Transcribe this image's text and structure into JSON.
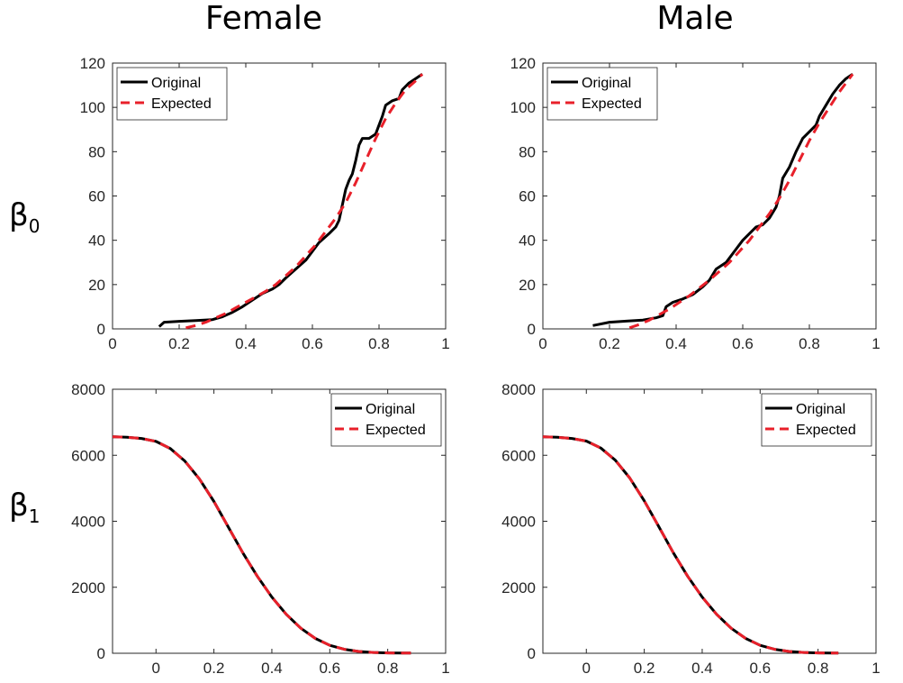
{
  "figure": {
    "col_titles": [
      "Female",
      "Male"
    ],
    "row_labels": [
      {
        "symbol": "β",
        "subscript": "0"
      },
      {
        "symbol": "β",
        "subscript": "1"
      }
    ]
  },
  "chart_data": [
    {
      "type": "line",
      "column": "Female",
      "row": "β0",
      "xlim": [
        0,
        1
      ],
      "ylim": [
        0,
        120
      ],
      "xticks": [
        0,
        0.2,
        0.4,
        0.6,
        0.8,
        1
      ],
      "xtick_labels": [
        "0",
        "0.2",
        "0.4",
        "0.6",
        "0.8",
        "1"
      ],
      "yticks": [
        0,
        20,
        40,
        60,
        80,
        100,
        120
      ],
      "ytick_labels": [
        "0",
        "20",
        "40",
        "60",
        "80",
        "100",
        "120"
      ],
      "legend_position": "top-left",
      "grid": false,
      "series": [
        {
          "name": "Original",
          "color": "#000000",
          "dash": "solid",
          "points": [
            [
              0.14,
              1
            ],
            [
              0.155,
              3
            ],
            [
              0.2,
              3.4
            ],
            [
              0.25,
              3.8
            ],
            [
              0.3,
              4.2
            ],
            [
              0.33,
              5.5
            ],
            [
              0.36,
              7.5
            ],
            [
              0.39,
              10
            ],
            [
              0.42,
              13
            ],
            [
              0.45,
              16
            ],
            [
              0.48,
              18
            ],
            [
              0.5,
              20
            ],
            [
              0.52,
              23
            ],
            [
              0.55,
              27
            ],
            [
              0.58,
              31
            ],
            [
              0.6,
              35
            ],
            [
              0.62,
              39
            ],
            [
              0.65,
              43
            ],
            [
              0.67,
              46
            ],
            [
              0.68,
              49
            ],
            [
              0.69,
              56
            ],
            [
              0.7,
              63
            ],
            [
              0.71,
              67
            ],
            [
              0.72,
              70
            ],
            [
              0.73,
              76
            ],
            [
              0.74,
              83
            ],
            [
              0.75,
              86
            ],
            [
              0.77,
              86
            ],
            [
              0.79,
              88
            ],
            [
              0.8,
              92
            ],
            [
              0.81,
              96
            ],
            [
              0.82,
              101
            ],
            [
              0.84,
              103
            ],
            [
              0.86,
              104
            ],
            [
              0.87,
              108
            ],
            [
              0.89,
              111
            ],
            [
              0.91,
              113
            ],
            [
              0.93,
              115
            ]
          ]
        },
        {
          "name": "Expected",
          "color": "#e8202a",
          "dash": "dashed",
          "points": [
            [
              0.22,
              0.5
            ],
            [
              0.25,
              1.5
            ],
            [
              0.28,
              3
            ],
            [
              0.31,
              5
            ],
            [
              0.34,
              7
            ],
            [
              0.37,
              9.5
            ],
            [
              0.4,
              12
            ],
            [
              0.43,
              14.5
            ],
            [
              0.46,
              17
            ],
            [
              0.49,
              20
            ],
            [
              0.52,
              24
            ],
            [
              0.55,
              28
            ],
            [
              0.58,
              33
            ],
            [
              0.61,
              38
            ],
            [
              0.64,
              44
            ],
            [
              0.67,
              50
            ],
            [
              0.7,
              57
            ],
            [
              0.73,
              66
            ],
            [
              0.76,
              76
            ],
            [
              0.79,
              86
            ],
            [
              0.82,
              95
            ],
            [
              0.85,
              102
            ],
            [
              0.88,
              108
            ],
            [
              0.91,
              112
            ],
            [
              0.93,
              115
            ]
          ]
        }
      ]
    },
    {
      "type": "line",
      "column": "Male",
      "row": "β0",
      "xlim": [
        0,
        1
      ],
      "ylim": [
        0,
        120
      ],
      "xticks": [
        0,
        0.2,
        0.4,
        0.6,
        0.8,
        1
      ],
      "xtick_labels": [
        "0",
        "0.2",
        "0.4",
        "0.6",
        "0.8",
        "1"
      ],
      "yticks": [
        0,
        20,
        40,
        60,
        80,
        100,
        120
      ],
      "ytick_labels": [
        "0",
        "20",
        "40",
        "60",
        "80",
        "100",
        "120"
      ],
      "legend_position": "top-left",
      "grid": false,
      "series": [
        {
          "name": "Original",
          "color": "#000000",
          "dash": "solid",
          "points": [
            [
              0.15,
              1.5
            ],
            [
              0.2,
              3
            ],
            [
              0.25,
              3.5
            ],
            [
              0.3,
              4
            ],
            [
              0.34,
              5
            ],
            [
              0.36,
              6
            ],
            [
              0.37,
              10
            ],
            [
              0.39,
              12
            ],
            [
              0.42,
              13.5
            ],
            [
              0.45,
              15.5
            ],
            [
              0.48,
              19
            ],
            [
              0.5,
              22
            ],
            [
              0.52,
              27
            ],
            [
              0.55,
              30
            ],
            [
              0.58,
              36
            ],
            [
              0.6,
              40
            ],
            [
              0.62,
              43
            ],
            [
              0.64,
              46
            ],
            [
              0.66,
              47
            ],
            [
              0.68,
              50
            ],
            [
              0.7,
              55
            ],
            [
              0.71,
              60
            ],
            [
              0.72,
              68
            ],
            [
              0.74,
              73
            ],
            [
              0.76,
              80
            ],
            [
              0.78,
              86
            ],
            [
              0.8,
              89
            ],
            [
              0.82,
              92
            ],
            [
              0.83,
              96
            ],
            [
              0.85,
              101
            ],
            [
              0.87,
              106
            ],
            [
              0.89,
              110
            ],
            [
              0.91,
              113
            ],
            [
              0.93,
              115
            ]
          ]
        },
        {
          "name": "Expected",
          "color": "#e8202a",
          "dash": "dashed",
          "points": [
            [
              0.26,
              0.5
            ],
            [
              0.29,
              2
            ],
            [
              0.32,
              4
            ],
            [
              0.35,
              6.5
            ],
            [
              0.38,
              9
            ],
            [
              0.41,
              12
            ],
            [
              0.44,
              15
            ],
            [
              0.47,
              18.5
            ],
            [
              0.5,
              22
            ],
            [
              0.53,
              26
            ],
            [
              0.56,
              30
            ],
            [
              0.59,
              35
            ],
            [
              0.62,
              40
            ],
            [
              0.65,
              46
            ],
            [
              0.68,
              52
            ],
            [
              0.71,
              59
            ],
            [
              0.74,
              67
            ],
            [
              0.77,
              76
            ],
            [
              0.8,
              85
            ],
            [
              0.83,
              93
            ],
            [
              0.86,
              100
            ],
            [
              0.89,
              107
            ],
            [
              0.91,
              111
            ],
            [
              0.93,
              115
            ]
          ]
        }
      ]
    },
    {
      "type": "line",
      "column": "Female",
      "row": "β1",
      "xlim": [
        -0.15,
        1
      ],
      "ylim": [
        0,
        8000
      ],
      "xticks": [
        0,
        0.2,
        0.4,
        0.6,
        0.8,
        1
      ],
      "xtick_labels": [
        "0",
        "0.2",
        "0.4",
        "0.6",
        "0.8",
        "1"
      ],
      "yticks": [
        0,
        2000,
        4000,
        6000,
        8000
      ],
      "ytick_labels": [
        "0",
        "2000",
        "4000",
        "6000",
        "8000"
      ],
      "legend_position": "top-right",
      "grid": false,
      "series": [
        {
          "name": "Original",
          "color": "#000000",
          "dash": "solid",
          "points": [
            [
              -0.15,
              6560
            ],
            [
              -0.1,
              6545
            ],
            [
              -0.05,
              6510
            ],
            [
              0,
              6420
            ],
            [
              0.05,
              6200
            ],
            [
              0.1,
              5820
            ],
            [
              0.15,
              5280
            ],
            [
              0.2,
              4600
            ],
            [
              0.25,
              3820
            ],
            [
              0.3,
              3040
            ],
            [
              0.35,
              2330
            ],
            [
              0.4,
              1700
            ],
            [
              0.45,
              1180
            ],
            [
              0.5,
              760
            ],
            [
              0.55,
              450
            ],
            [
              0.6,
              240
            ],
            [
              0.65,
              120
            ],
            [
              0.7,
              55
            ],
            [
              0.75,
              25
            ],
            [
              0.8,
              12
            ],
            [
              0.85,
              6
            ],
            [
              0.88,
              5
            ]
          ]
        },
        {
          "name": "Expected",
          "color": "#e8202a",
          "dash": "dashed",
          "points": [
            [
              -0.15,
              6560
            ],
            [
              -0.1,
              6545
            ],
            [
              -0.05,
              6510
            ],
            [
              0,
              6420
            ],
            [
              0.05,
              6200
            ],
            [
              0.1,
              5820
            ],
            [
              0.15,
              5280
            ],
            [
              0.2,
              4600
            ],
            [
              0.25,
              3820
            ],
            [
              0.3,
              3040
            ],
            [
              0.35,
              2330
            ],
            [
              0.4,
              1700
            ],
            [
              0.45,
              1180
            ],
            [
              0.5,
              760
            ],
            [
              0.55,
              450
            ],
            [
              0.6,
              240
            ],
            [
              0.65,
              120
            ],
            [
              0.7,
              55
            ],
            [
              0.75,
              25
            ],
            [
              0.8,
              12
            ],
            [
              0.85,
              6
            ],
            [
              0.88,
              5
            ]
          ]
        }
      ]
    },
    {
      "type": "line",
      "column": "Male",
      "row": "β1",
      "xlim": [
        -0.15,
        1
      ],
      "ylim": [
        0,
        8000
      ],
      "xticks": [
        0,
        0.2,
        0.4,
        0.6,
        0.8,
        1
      ],
      "xtick_labels": [
        "0",
        "0.2",
        "0.4",
        "0.6",
        "0.8",
        "1"
      ],
      "yticks": [
        0,
        2000,
        4000,
        6000,
        8000
      ],
      "ytick_labels": [
        "0",
        "2000",
        "4000",
        "6000",
        "8000"
      ],
      "legend_position": "top-right",
      "grid": false,
      "series": [
        {
          "name": "Original",
          "color": "#000000",
          "dash": "solid",
          "points": [
            [
              -0.15,
              6560
            ],
            [
              -0.1,
              6545
            ],
            [
              -0.05,
              6510
            ],
            [
              0,
              6430
            ],
            [
              0.05,
              6220
            ],
            [
              0.1,
              5850
            ],
            [
              0.15,
              5310
            ],
            [
              0.2,
              4620
            ],
            [
              0.25,
              3840
            ],
            [
              0.3,
              3050
            ],
            [
              0.35,
              2330
            ],
            [
              0.4,
              1700
            ],
            [
              0.45,
              1180
            ],
            [
              0.5,
              760
            ],
            [
              0.55,
              450
            ],
            [
              0.6,
              240
            ],
            [
              0.65,
              120
            ],
            [
              0.7,
              55
            ],
            [
              0.75,
              25
            ],
            [
              0.8,
              12
            ],
            [
              0.85,
              6
            ],
            [
              0.87,
              5
            ]
          ]
        },
        {
          "name": "Expected",
          "color": "#e8202a",
          "dash": "dashed",
          "points": [
            [
              -0.15,
              6560
            ],
            [
              -0.1,
              6545
            ],
            [
              -0.05,
              6510
            ],
            [
              0,
              6430
            ],
            [
              0.05,
              6220
            ],
            [
              0.1,
              5850
            ],
            [
              0.15,
              5310
            ],
            [
              0.2,
              4620
            ],
            [
              0.25,
              3840
            ],
            [
              0.3,
              3050
            ],
            [
              0.35,
              2330
            ],
            [
              0.4,
              1700
            ],
            [
              0.45,
              1180
            ],
            [
              0.5,
              760
            ],
            [
              0.55,
              450
            ],
            [
              0.6,
              240
            ],
            [
              0.65,
              120
            ],
            [
              0.7,
              55
            ],
            [
              0.75,
              25
            ],
            [
              0.8,
              12
            ],
            [
              0.85,
              6
            ],
            [
              0.87,
              5
            ]
          ]
        }
      ]
    }
  ]
}
